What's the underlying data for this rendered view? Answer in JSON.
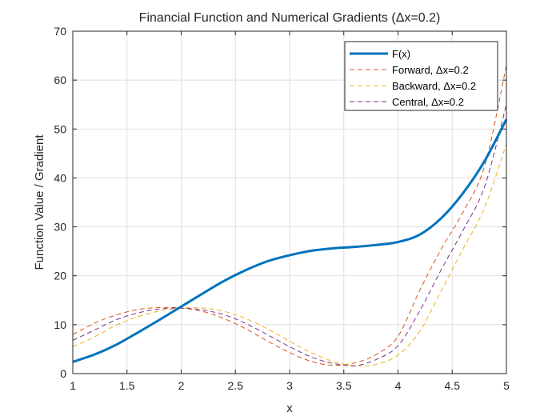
{
  "chart_data": {
    "type": "line",
    "title": "Financial Function and Numerical Gradients (Δx=0.2)",
    "xlabel": "x",
    "ylabel": "Function Value / Gradient",
    "xlim": [
      1,
      5
    ],
    "ylim": [
      0,
      70
    ],
    "xticks": [
      1,
      1.5,
      2,
      2.5,
      3,
      3.5,
      4,
      4.5,
      5
    ],
    "xtick_labels": [
      "1",
      "1.5",
      "2",
      "2.5",
      "3",
      "3.5",
      "4",
      "4.5",
      "5"
    ],
    "yticks": [
      0,
      10,
      20,
      30,
      40,
      50,
      60,
      70
    ],
    "ytick_labels": [
      "0",
      "10",
      "20",
      "30",
      "40",
      "50",
      "60",
      "70"
    ],
    "grid": true,
    "legend_position": "top-right",
    "x": [
      1,
      1.2,
      1.4,
      1.6,
      1.8,
      2,
      2.2,
      2.4,
      2.6,
      2.8,
      3,
      3.2,
      3.4,
      3.6,
      3.8,
      4,
      4.2,
      4.4,
      4.6,
      4.8,
      5
    ],
    "series": [
      {
        "name": "F(x)",
        "color": "#0072BD",
        "style": "solid",
        "values": [
          2.4,
          3.9,
          5.9,
          8.4,
          11.0,
          13.7,
          16.4,
          19.0,
          21.2,
          23.0,
          24.2,
          25.1,
          25.6,
          25.9,
          26.3,
          26.9,
          28.4,
          31.8,
          36.9,
          43.5,
          52.0
        ]
      },
      {
        "name": "Forward, Δx=0.2",
        "color": "#D95319",
        "style": "dashed",
        "values": [
          8.0,
          10.3,
          12.0,
          13.1,
          13.5,
          13.4,
          12.7,
          11.2,
          9.1,
          6.6,
          4.3,
          2.5,
          1.7,
          2.2,
          3.9,
          7.6,
          17.0,
          25.5,
          33.0,
          42.5,
          63.0
        ]
      },
      {
        "name": "Backward, Δx=0.2",
        "color": "#EDB120",
        "style": "dashed",
        "values": [
          5.5,
          7.5,
          9.9,
          11.6,
          12.8,
          13.4,
          13.4,
          12.7,
          11.2,
          9.1,
          6.6,
          4.3,
          2.5,
          1.6,
          1.9,
          3.8,
          8.6,
          17.0,
          25.5,
          34.0,
          47.0
        ]
      },
      {
        "name": "Central, Δx=0.2",
        "color": "#7E2F8E",
        "style": "dashed",
        "values": [
          6.8,
          8.9,
          11.0,
          12.4,
          13.2,
          13.4,
          13.0,
          12.0,
          10.2,
          7.9,
          5.5,
          3.4,
          2.1,
          1.6,
          2.9,
          5.7,
          12.8,
          21.3,
          29.3,
          38.3,
          55.0
        ]
      }
    ]
  }
}
